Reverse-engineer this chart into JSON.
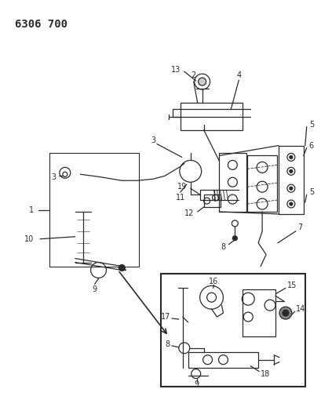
{
  "title": "6306 700",
  "bg_color": "#ffffff",
  "title_fontsize": 10,
  "fig_width": 4.1,
  "fig_height": 5.33,
  "dpi": 100,
  "line_color": "#2a2a2a",
  "label_fontsize": 7,
  "gray_fill": "#d8d8d8"
}
